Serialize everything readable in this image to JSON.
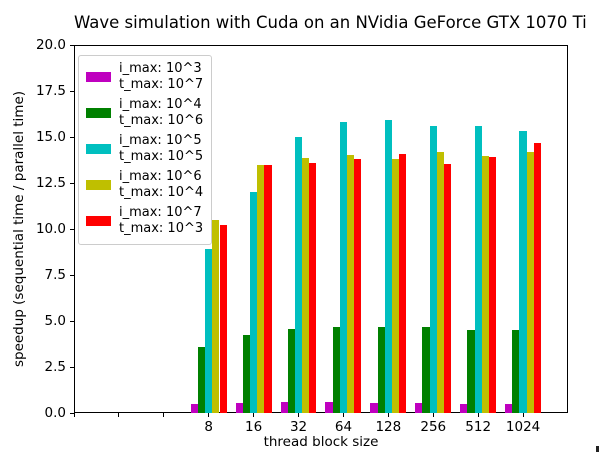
{
  "chart_data": {
    "type": "bar",
    "title": "Wave simulation with Cuda on an NVidia GeForce GTX 1070 Ti",
    "xlabel": "thread block size",
    "ylabel": "speedup (sequential time / parallel time)",
    "categories": [
      "8",
      "16",
      "32",
      "64",
      "128",
      "256",
      "512",
      "1024"
    ],
    "series": [
      {
        "name": "i_max: 10^3, t_max: 10^7",
        "label_lines": [
          "i_max: 10^3",
          "t_max: 10^7"
        ],
        "color": "#bf00bf",
        "values": [
          0.5,
          0.55,
          0.6,
          0.6,
          0.55,
          0.55,
          0.5,
          0.5
        ]
      },
      {
        "name": "i_max: 10^4, t_max: 10^6",
        "label_lines": [
          "i_max: 10^4",
          "t_max: 10^6"
        ],
        "color": "#008000",
        "values": [
          3.6,
          4.25,
          4.55,
          4.7,
          4.7,
          4.65,
          4.5,
          4.5
        ]
      },
      {
        "name": "i_max: 10^5, t_max: 10^5",
        "label_lines": [
          "i_max: 10^5",
          "t_max: 10^5"
        ],
        "color": "#00bfbf",
        "values": [
          8.9,
          12.0,
          15.0,
          15.8,
          15.95,
          15.6,
          15.6,
          15.35
        ]
      },
      {
        "name": "i_max: 10^6, t_max: 10^4",
        "label_lines": [
          "i_max: 10^6",
          "t_max: 10^4"
        ],
        "color": "#bfbf00",
        "values": [
          10.5,
          13.5,
          13.85,
          14.0,
          13.8,
          14.2,
          13.95,
          14.2
        ]
      },
      {
        "name": "i_max: 10^7, t_max: 10^3",
        "label_lines": [
          "i_max: 10^7",
          "t_max: 10^3"
        ],
        "color": "#ff0000",
        "values": [
          10.2,
          13.5,
          13.6,
          13.8,
          14.05,
          13.55,
          13.9,
          14.7
        ]
      }
    ],
    "ylim": [
      0,
      20
    ],
    "ytick_step": 2.5,
    "ytick_labels": [
      "0.0",
      "2.5",
      "5.0",
      "7.5",
      "10.0",
      "12.5",
      "15.0",
      "17.5",
      "20.0"
    ],
    "x_ticks_total": 11,
    "x_ticks_leading_unlabeled": 3,
    "grid": false,
    "legend_position": "upper left",
    "bar_group_width_fraction": 0.8
  }
}
